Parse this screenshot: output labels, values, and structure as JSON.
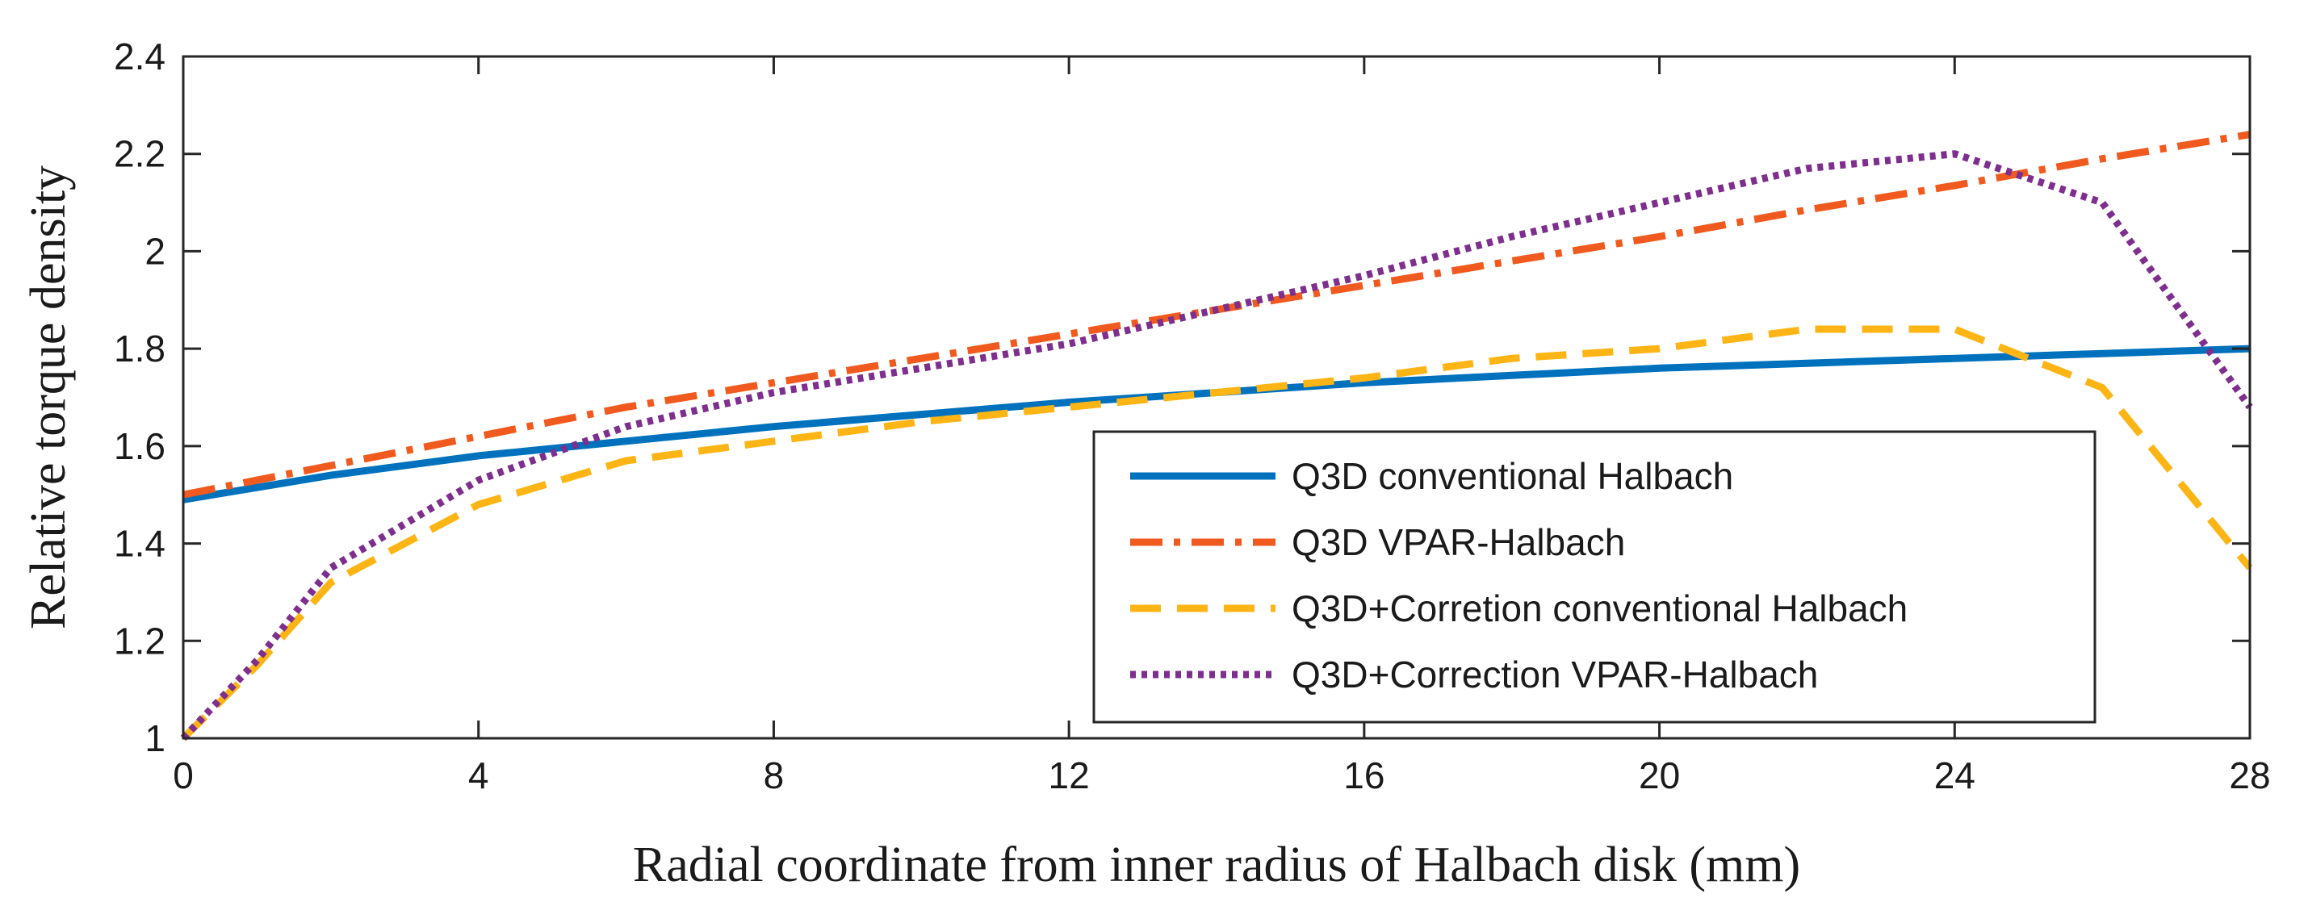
{
  "chart_data": {
    "type": "line",
    "title": "",
    "xlabel": "Radial coordinate from inner radius of Halbach disk  (mm)",
    "ylabel": "Relative torque density",
    "xlim": [
      0,
      28
    ],
    "ylim": [
      1,
      2.4
    ],
    "xticks": [
      0,
      4,
      8,
      12,
      16,
      20,
      24,
      28
    ],
    "yticks": [
      1,
      1.2,
      1.4,
      1.6,
      1.8,
      2,
      2.2,
      2.4
    ],
    "xtick_labels": [
      "0",
      "4",
      "8",
      "12",
      "16",
      "20",
      "24",
      "28"
    ],
    "ytick_labels": [
      "1",
      "1.2",
      "1.4",
      "1.6",
      "1.8",
      "2",
      "2.2",
      "2.4"
    ],
    "grid": false,
    "legend_position": "lower-right",
    "series": [
      {
        "name": "Q3D conventional Halbach",
        "color": "#0072BD",
        "style": "solid",
        "x": [
          0,
          2,
          4,
          6,
          8,
          10,
          12,
          14,
          16,
          18,
          20,
          22,
          24,
          26,
          28
        ],
        "y": [
          1.49,
          1.54,
          1.58,
          1.61,
          1.64,
          1.665,
          1.69,
          1.71,
          1.73,
          1.745,
          1.76,
          1.77,
          1.78,
          1.79,
          1.8
        ]
      },
      {
        "name": "Q3D VPAR-Halbach",
        "color": "#F05A1E",
        "style": "dashdot",
        "x": [
          0,
          2,
          4,
          6,
          8,
          10,
          12,
          14,
          16,
          18,
          20,
          22,
          24,
          26,
          28
        ],
        "y": [
          1.5,
          1.56,
          1.62,
          1.68,
          1.73,
          1.78,
          1.83,
          1.88,
          1.93,
          1.98,
          2.03,
          2.085,
          2.135,
          2.19,
          2.24
        ]
      },
      {
        "name": "Q3D+Corretion conventional Halbach",
        "color": "#FDB515",
        "style": "dashed",
        "x": [
          0,
          1,
          2,
          4,
          6,
          8,
          10,
          12,
          14,
          16,
          18,
          20,
          22,
          24,
          26,
          28
        ],
        "y": [
          1.0,
          1.15,
          1.32,
          1.48,
          1.57,
          1.61,
          1.65,
          1.68,
          1.71,
          1.74,
          1.78,
          1.8,
          1.84,
          1.84,
          1.72,
          1.35
        ]
      },
      {
        "name": "Q3D+Correction VPAR-Halbach",
        "color": "#7E2F8E",
        "style": "dotted",
        "x": [
          0,
          1,
          2,
          4,
          6,
          8,
          10,
          12,
          14,
          16,
          18,
          20,
          22,
          24,
          26,
          28
        ],
        "y": [
          1.0,
          1.16,
          1.35,
          1.53,
          1.64,
          1.71,
          1.76,
          1.81,
          1.88,
          1.95,
          2.03,
          2.1,
          2.17,
          2.2,
          2.1,
          1.68
        ]
      }
    ]
  }
}
